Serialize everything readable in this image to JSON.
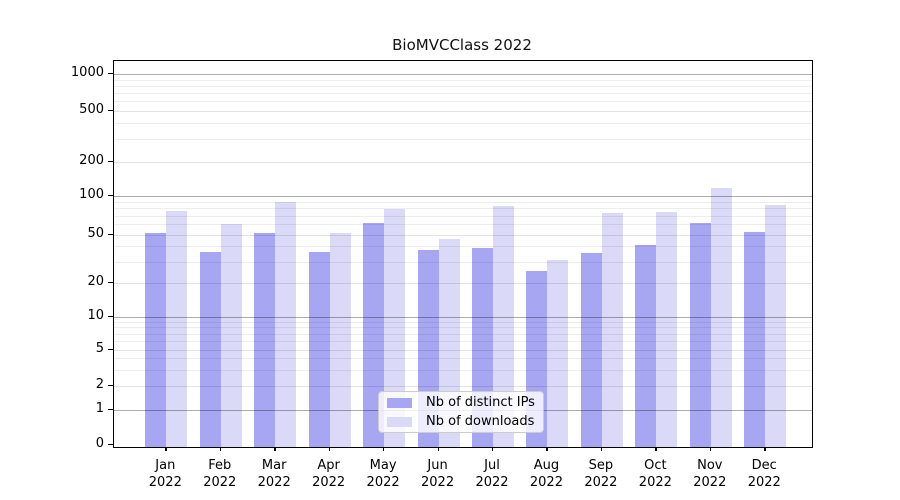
{
  "figure": {
    "title": "BioMVCClass 2022"
  },
  "chart_data": {
    "type": "bar",
    "title": "BioMVCClass 2022",
    "categories": [
      {
        "month": "Jan",
        "year": "2022"
      },
      {
        "month": "Feb",
        "year": "2022"
      },
      {
        "month": "Mar",
        "year": "2022"
      },
      {
        "month": "Apr",
        "year": "2022"
      },
      {
        "month": "May",
        "year": "2022"
      },
      {
        "month": "Jun",
        "year": "2022"
      },
      {
        "month": "Jul",
        "year": "2022"
      },
      {
        "month": "Aug",
        "year": "2022"
      },
      {
        "month": "Sep",
        "year": "2022"
      },
      {
        "month": "Oct",
        "year": "2022"
      },
      {
        "month": "Nov",
        "year": "2022"
      },
      {
        "month": "Dec",
        "year": "2022"
      }
    ],
    "series": [
      {
        "name": "Nb of distinct IPs",
        "color": "#a6a6f2",
        "values": [
          51,
          36,
          51,
          36,
          62,
          37,
          39,
          25,
          35,
          41,
          62,
          52
        ]
      },
      {
        "name": "Nb of downloads",
        "color": "#dadaf8",
        "values": [
          76,
          60,
          90,
          51,
          79,
          46,
          84,
          31,
          74,
          75,
          118,
          85
        ]
      }
    ],
    "yscale": "symlog",
    "yticks": [
      1000,
      500,
      200,
      100,
      50,
      20,
      10,
      5,
      2,
      1,
      0
    ],
    "ytick_major": [
      1000,
      100,
      10,
      1
    ],
    "ylim": [
      0,
      1300
    ],
    "grid": {
      "shown": true,
      "minor": true,
      "drawn_over_bars": true
    },
    "legend_position": "lower center"
  },
  "colors": {
    "distinct_ips_bar": "#a6a6f2",
    "downloads_bar": "#dadaf8",
    "major_grid": "#b3b3b3",
    "minor_grid": "#ececec",
    "spine": "#000000",
    "background": "#ffffff"
  }
}
